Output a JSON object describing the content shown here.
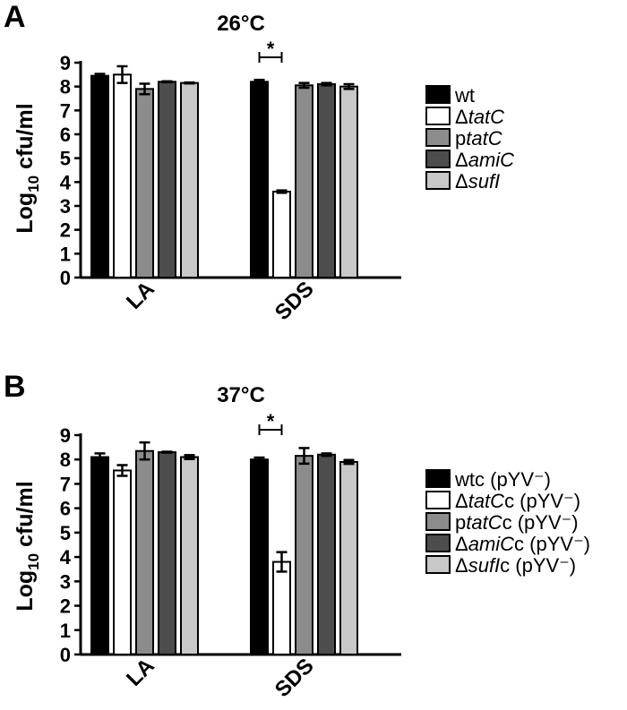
{
  "chart_data": [
    {
      "type": "bar",
      "panel": "A",
      "title": "26°C",
      "ylabel": "Log10 cfu/ml",
      "ylim": [
        0,
        9
      ],
      "yticks": [
        "0",
        "1",
        "2",
        "3",
        "4",
        "5",
        "6",
        "7",
        "8",
        "9"
      ],
      "categories": [
        "LA",
        "SDS"
      ],
      "significance": {
        "category": "SDS",
        "label": "*"
      },
      "series": [
        {
          "name": "wt",
          "color": "#000000",
          "values": [
            8.45,
            8.2
          ],
          "errors": [
            0.08,
            0.08
          ]
        },
        {
          "name": "ΔtatC",
          "color": "#ffffff",
          "values": [
            8.5,
            3.6
          ],
          "errors": [
            0.35,
            0.05
          ]
        },
        {
          "name": "ptatC",
          "color": "#8c8c8c",
          "values": [
            7.9,
            8.05
          ],
          "errors": [
            0.22,
            0.1
          ]
        },
        {
          "name": "ΔamiC",
          "color": "#4d4d4d",
          "values": [
            8.2,
            8.1
          ],
          "errors": [
            0.02,
            0.05
          ]
        },
        {
          "name": "ΔsufI",
          "color": "#c8c8c8",
          "values": [
            8.15,
            8.0
          ],
          "errors": [
            0.02,
            0.1
          ]
        }
      ]
    },
    {
      "type": "bar",
      "panel": "B",
      "title": "37°C",
      "ylabel": "Log10 cfu/ml",
      "ylim": [
        0,
        9
      ],
      "yticks": [
        "0",
        "1",
        "2",
        "3",
        "4",
        "5",
        "6",
        "7",
        "8",
        "9"
      ],
      "categories": [
        "LA",
        "SDS"
      ],
      "significance": {
        "category": "SDS",
        "label": "*"
      },
      "series": [
        {
          "name": "wtc (pYV⁻)",
          "color": "#000000",
          "values": [
            8.1,
            8.0
          ],
          "errors": [
            0.15,
            0.08
          ]
        },
        {
          "name": "ΔtatCc (pYV⁻)",
          "color": "#ffffff",
          "values": [
            7.55,
            3.8
          ],
          "errors": [
            0.22,
            0.4
          ]
        },
        {
          "name": "ptatCc (pYV⁻)",
          "color": "#8c8c8c",
          "values": [
            8.35,
            8.15
          ],
          "errors": [
            0.35,
            0.32
          ]
        },
        {
          "name": "ΔamiCc (pYV⁻)",
          "color": "#4d4d4d",
          "values": [
            8.3,
            8.2
          ],
          "errors": [
            0.02,
            0.05
          ]
        },
        {
          "name": "ΔsufIc (pYV⁻)",
          "color": "#c8c8c8",
          "values": [
            8.1,
            7.9
          ],
          "errors": [
            0.08,
            0.08
          ]
        }
      ]
    }
  ],
  "legends": [
    [
      {
        "prefix": "",
        "italic": "",
        "suffix": "wt"
      },
      {
        "prefix": "Δ",
        "italic": "tatC",
        "suffix": ""
      },
      {
        "prefix": "p",
        "italic": "tatC",
        "suffix": ""
      },
      {
        "prefix": "Δ",
        "italic": "amiC",
        "suffix": ""
      },
      {
        "prefix": "Δ",
        "italic": "sufI",
        "suffix": ""
      }
    ],
    [
      {
        "prefix": "wtc (pYV⁻)",
        "italic": "",
        "suffix": ""
      },
      {
        "prefix": "Δ",
        "italic": "tatC",
        "suffix": "c (pYV⁻)"
      },
      {
        "prefix": "p",
        "italic": "tatC",
        "suffix": "c (pYV⁻)"
      },
      {
        "prefix": "Δ",
        "italic": "amiC",
        "suffix": "c (pYV⁻)"
      },
      {
        "prefix": "Δ",
        "italic": "sufI",
        "suffix": "c (pYV⁻)"
      }
    ]
  ]
}
